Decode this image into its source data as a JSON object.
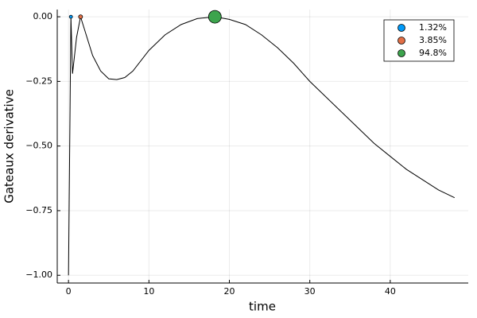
{
  "chart_data": {
    "type": "line",
    "xlabel": "time",
    "ylabel": "Gateaux derivative",
    "xlim": [
      -1.4,
      49.7
    ],
    "ylim": [
      -1.03,
      0.028
    ],
    "xticks": [
      0,
      10,
      20,
      30,
      40
    ],
    "yticks": [
      {
        "value": 0,
        "label": "0.00"
      },
      {
        "value": -0.25,
        "label": "−0.25"
      },
      {
        "value": -0.5,
        "label": "−0.50"
      },
      {
        "value": -0.75,
        "label": "−0.75"
      },
      {
        "value": -1,
        "label": "−1.00"
      }
    ],
    "grid": true,
    "legend": "top-right",
    "line": {
      "color": "#000000",
      "x": [
        0,
        0.3,
        0.5,
        1.0,
        1.5,
        2,
        3,
        4,
        5,
        6,
        7,
        8,
        10,
        12,
        14,
        16,
        18.2,
        20,
        22,
        24,
        26,
        28,
        30,
        32,
        34,
        36,
        38,
        40,
        42,
        44,
        46,
        48
      ],
      "values": [
        -1.0,
        0.0,
        -0.22,
        -0.08,
        0.0,
        -0.05,
        -0.15,
        -0.21,
        -0.24,
        -0.243,
        -0.235,
        -0.21,
        -0.13,
        -0.07,
        -0.03,
        -0.007,
        0,
        -0.01,
        -0.03,
        -0.07,
        -0.12,
        -0.18,
        -0.25,
        -0.31,
        -0.37,
        -0.43,
        -0.49,
        -0.54,
        -0.59,
        -0.63,
        -0.67,
        -0.7
      ]
    },
    "series": [
      {
        "name": "1.32%",
        "color": "#009af9",
        "marker_size": 2,
        "x": [
          0.3
        ],
        "values": [
          0
        ]
      },
      {
        "name": "3.85%",
        "color": "#e26f46",
        "marker_size": 2.5,
        "x": [
          1.5
        ],
        "values": [
          0
        ]
      },
      {
        "name": "94.8%",
        "color": "#3da44d",
        "marker_size": 8,
        "x": [
          18.2
        ],
        "values": [
          0
        ]
      }
    ]
  }
}
